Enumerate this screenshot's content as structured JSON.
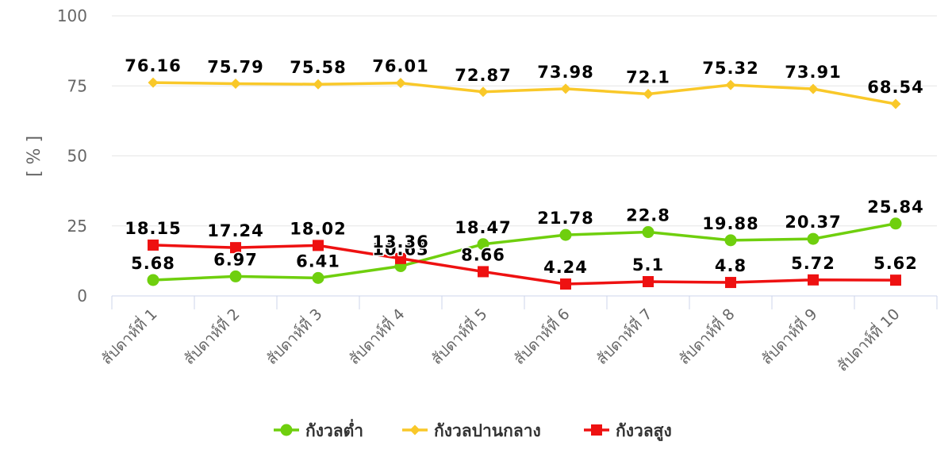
{
  "chart_data": {
    "type": "line",
    "title": "",
    "xlabel": "",
    "ylabel": "[ % ]",
    "ylim": [
      0,
      100
    ],
    "yticks": [
      0,
      25,
      50,
      75,
      100
    ],
    "grid": true,
    "legend_position": "bottom-center",
    "categories": [
      "สัปดาห์ที่ 1",
      "สัปดาห์ที่ 2",
      "สัปดาห์ที่ 3",
      "สัปดาห์ที่ 4",
      "สัปดาห์ที่ 5",
      "สัปดาห์ที่ 6",
      "สัปดาห์ที่ 7",
      "สัปดาห์ที่ 8",
      "สัปดาห์ที่ 9",
      "สัปดาห์ที่ 10"
    ],
    "series": [
      {
        "name": "กังวลต่ำ",
        "color": "#6fcf0e",
        "marker": "circle",
        "values": [
          5.68,
          6.97,
          6.41,
          10.63,
          18.47,
          21.78,
          22.8,
          19.88,
          20.37,
          25.84
        ]
      },
      {
        "name": "กังวลปานกลาง",
        "color": "#f9c829",
        "marker": "diamond",
        "values": [
          76.16,
          75.79,
          75.58,
          76.01,
          72.87,
          73.98,
          72.1,
          75.32,
          73.91,
          68.54
        ]
      },
      {
        "name": "กังวลสูง",
        "color": "#ee1111",
        "marker": "square",
        "values": [
          18.15,
          17.24,
          18.02,
          13.36,
          8.66,
          4.24,
          5.1,
          4.8,
          5.72,
          5.62
        ]
      }
    ]
  }
}
